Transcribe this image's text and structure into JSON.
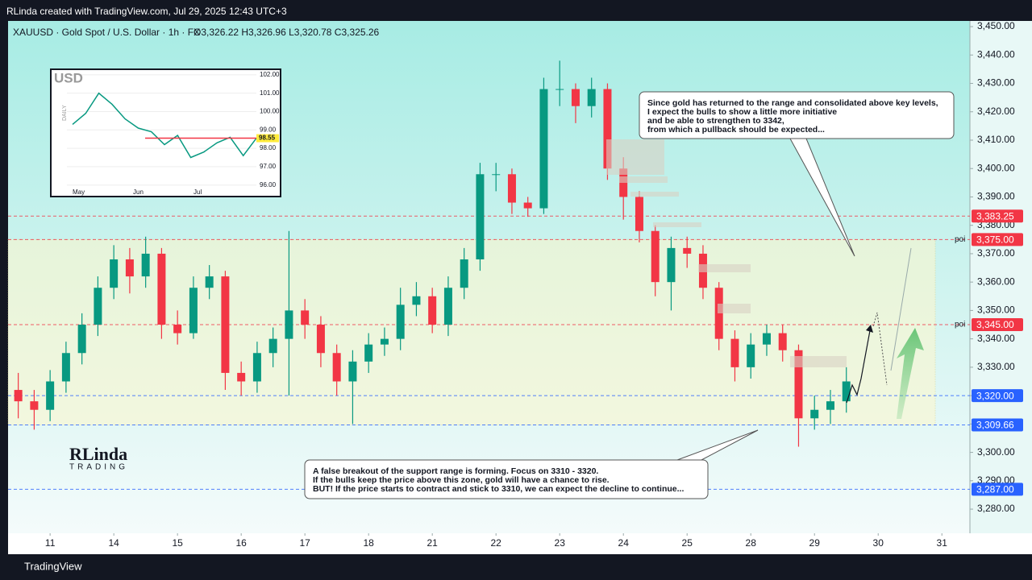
{
  "header": {
    "credit": "RLinda created with TradingView.com, Jul 29, 2025 12:43 UTC+3",
    "footer": "TradingView"
  },
  "chart_data": {
    "type": "candlestick",
    "title": "XAUUSD · Gold Spot / U.S. Dollar · 1h · FX",
    "ohlc": "O3,326.22  H3,326.96  L3,320.78  C3,325.26",
    "up_color": "#089981",
    "down_color": "#f23645",
    "x": [
      -0.5,
      -0.25,
      0,
      0.25,
      0.5,
      0.75,
      1,
      1.25,
      1.5,
      1.75,
      2,
      2.25,
      2.5,
      2.75,
      3,
      3.25,
      3.5,
      3.75,
      4,
      4.25,
      4.5,
      4.75,
      5,
      5.25,
      5.5,
      5.75,
      6,
      6.25,
      6.5,
      6.75,
      7,
      7.25,
      7.5,
      7.75,
      8,
      8.25,
      8.5,
      8.75,
      9,
      9.25,
      9.5,
      9.75,
      10,
      10.25,
      10.5,
      10.75,
      11,
      11.25,
      11.5,
      11.75,
      12,
      12.25,
      12.5
    ],
    "open": [
      3322,
      3318,
      3315,
      3325,
      3335,
      3345,
      3358,
      3368,
      3362,
      3370,
      3345,
      3342,
      3358,
      3362,
      3328,
      3325,
      3335,
      3340,
      3350,
      3345,
      3335,
      3325,
      3332,
      3338,
      3340,
      3352,
      3355,
      3345,
      3358,
      3368,
      3398,
      3398,
      3388,
      3386,
      3428,
      3428,
      3422,
      3428,
      3400,
      3390,
      3378,
      3360,
      3372,
      3370,
      3358,
      3340,
      3330,
      3338,
      3342,
      3336,
      3312,
      3315,
      3318
    ],
    "high": [
      3328,
      3322,
      3329,
      3339,
      3349,
      3362,
      3373,
      3372,
      3376,
      3372,
      3350,
      3362,
      3366,
      3364,
      3332,
      3339,
      3344,
      3378,
      3354,
      3348,
      3338,
      3336,
      3342,
      3344,
      3358,
      3360,
      3358,
      3362,
      3372,
      3402,
      3402,
      3400,
      3390,
      3432,
      3438,
      3430,
      3432,
      3430,
      3404,
      3392,
      3380,
      3376,
      3376,
      3373,
      3360,
      3343,
      3342,
      3345,
      3345,
      3338,
      3320,
      3322,
      3330
    ],
    "low": [
      3312,
      3308,
      3311,
      3321,
      3331,
      3341,
      3354,
      3356,
      3358,
      3340,
      3338,
      3340,
      3354,
      3322,
      3320,
      3321,
      3330,
      3320,
      3340,
      3330,
      3320,
      3310,
      3328,
      3334,
      3336,
      3348,
      3342,
      3341,
      3354,
      3364,
      3392,
      3384,
      3383,
      3384,
      3422,
      3416,
      3418,
      3396,
      3382,
      3374,
      3355,
      3350,
      3365,
      3354,
      3336,
      3325,
      3326,
      3334,
      3332,
      3302,
      3308,
      3310,
      3314
    ],
    "close": [
      3318,
      3315,
      3325,
      3335,
      3345,
      3358,
      3368,
      3362,
      3370,
      3345,
      3342,
      3358,
      3362,
      3328,
      3325,
      3335,
      3340,
      3350,
      3345,
      3335,
      3325,
      3332,
      3338,
      3340,
      3352,
      3355,
      3345,
      3358,
      3368,
      3398,
      3398,
      3388,
      3386,
      3428,
      3428,
      3422,
      3428,
      3400,
      3390,
      3378,
      3360,
      3372,
      3370,
      3358,
      3340,
      3330,
      3338,
      3342,
      3336,
      3312,
      3315,
      3318,
      3325
    ],
    "xlim": [
      -0.66,
      14.44
    ],
    "xticks": [
      {
        "value": 0,
        "label": "11"
      },
      {
        "value": 1,
        "label": "14"
      },
      {
        "value": 2,
        "label": "15"
      },
      {
        "value": 3,
        "label": "16"
      },
      {
        "value": 4,
        "label": "17"
      },
      {
        "value": 5,
        "label": "18"
      },
      {
        "value": 6,
        "label": "21"
      },
      {
        "value": 7,
        "label": "22"
      },
      {
        "value": 8,
        "label": "23"
      },
      {
        "value": 9,
        "label": "24"
      },
      {
        "value": 10,
        "label": "25"
      },
      {
        "value": 11,
        "label": "28"
      },
      {
        "value": 12,
        "label": "29"
      },
      {
        "value": 13,
        "label": "30"
      },
      {
        "value": 14,
        "label": "31"
      }
    ],
    "ylim": [
      3271.5,
      3452
    ],
    "yticks": [
      {
        "value": 3280,
        "label": "3,280.00"
      },
      {
        "value": 3290,
        "label": "3,290.00"
      },
      {
        "value": 3300,
        "label": "3,300.00"
      },
      {
        "value": 3310,
        "label": "3,310.00"
      },
      {
        "value": 3320,
        "label": "3,320.00"
      },
      {
        "value": 3330,
        "label": "3,330.00"
      },
      {
        "value": 3340,
        "label": "3,340.00"
      },
      {
        "value": 3350,
        "label": "3,350.00"
      },
      {
        "value": 3360,
        "label": "3,360.00"
      },
      {
        "value": 3370,
        "label": "3,370.00"
      },
      {
        "value": 3380,
        "label": "3,380.00"
      },
      {
        "value": 3390,
        "label": "3,390.00"
      },
      {
        "value": 3400,
        "label": "3,400.00"
      },
      {
        "value": 3410,
        "label": "3,410.00"
      },
      {
        "value": 3420,
        "label": "3,420.00"
      },
      {
        "value": 3430,
        "label": "3,430.00"
      },
      {
        "value": 3440,
        "label": "3,440.00"
      },
      {
        "value": 3450,
        "label": "3,450.00"
      }
    ],
    "levels": [
      {
        "value": 3383.25,
        "label": "3,383.25",
        "color": "#f23645"
      },
      {
        "value": 3375,
        "label": "3,375.00",
        "color": "#f23645",
        "note": "poi"
      },
      {
        "value": 3345,
        "label": "3,345.00",
        "color": "#f23645",
        "note": "poi"
      },
      {
        "value": 3320,
        "label": "3,320.00",
        "color": "#2962ff"
      },
      {
        "value": 3309.66,
        "label": "3,309.66",
        "color": "#2962ff"
      },
      {
        "value": 3287,
        "label": "3,287.00",
        "color": "#2962ff"
      }
    ],
    "annotations": [
      {
        "lines": [
          "Since gold has returned to the range and consolidated above key levels,",
          "I expect the bulls to show a little more initiative",
          "and be able to strengthen to 3342,",
          "from which a pullback should be expected..."
        ]
      },
      {
        "lines": [
          "A false breakout of the support range is forming. Focus on 3310 - 3320.",
          "If the bulls keep the price above this zone, gold will have a chance to rise.",
          "BUT! If the price starts to contract and stick to 3310, we can expect the decline to continue..."
        ]
      }
    ]
  },
  "logo": {
    "name": "RLinda",
    "tagline": "TRADING"
  },
  "inset_chart": {
    "type": "line",
    "title": "USD",
    "side_label": "DAILY",
    "color": "#089981",
    "values": [
      99.3,
      99.9,
      101.0,
      100.4,
      99.6,
      99.1,
      98.9,
      98.2,
      98.7,
      97.5,
      97.8,
      98.3,
      98.6,
      97.6,
      98.55
    ],
    "last_label": "98.55",
    "ylim": [
      95.9,
      102.3
    ],
    "yticks": [
      {
        "value": 96,
        "label": "96.00"
      },
      {
        "value": 97,
        "label": "97.00"
      },
      {
        "value": 98,
        "label": "98.00"
      },
      {
        "value": 99,
        "label": "99.00"
      },
      {
        "value": 100,
        "label": "100.00"
      },
      {
        "value": 101,
        "label": "101.00"
      },
      {
        "value": 102,
        "label": "102.00"
      }
    ],
    "months": [
      "May",
      "Jun",
      "Jul"
    ]
  }
}
